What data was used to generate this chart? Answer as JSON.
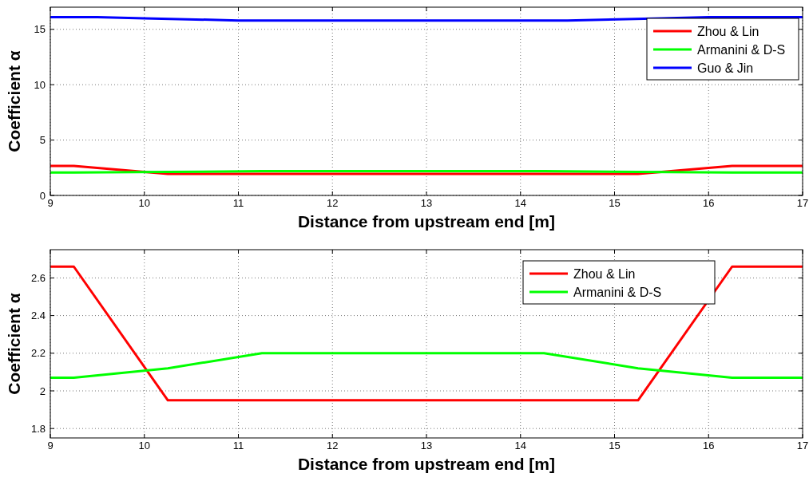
{
  "chart_data": [
    {
      "type": "line",
      "xlabel": "Distance from upstream end [m]",
      "ylabel": "Coefficient α",
      "xlim": [
        9,
        17
      ],
      "xticks": [
        9,
        10,
        11,
        12,
        13,
        14,
        15,
        16,
        17
      ],
      "ylim": [
        0,
        17
      ],
      "yticks": [
        0,
        5,
        10,
        15
      ],
      "grid": true,
      "legend": "top right",
      "line_style": "solid",
      "marker": "none",
      "series": [
        {
          "name": "Zhou & Lin",
          "color": "#ff0000",
          "x": [
            9,
            9.25,
            10.25,
            15.25,
            16.25,
            17
          ],
          "values": [
            2.66,
            2.66,
            1.95,
            1.95,
            2.66,
            2.66
          ]
        },
        {
          "name": "Armanini & D-S",
          "color": "#00ff00",
          "x": [
            9,
            9.25,
            10.25,
            11.25,
            14.25,
            15.25,
            16.25,
            17
          ],
          "values": [
            2.07,
            2.07,
            2.12,
            2.2,
            2.2,
            2.12,
            2.07,
            2.07
          ]
        },
        {
          "name": "Guo & Jin",
          "color": "#0000ff",
          "x": [
            9,
            9.5,
            10,
            11,
            14.5,
            15.5,
            16,
            17
          ],
          "values": [
            16.1,
            16.1,
            16.0,
            15.8,
            15.8,
            16.0,
            16.1,
            16.1
          ]
        }
      ]
    },
    {
      "type": "line",
      "xlabel": "Distance from upstream end [m]",
      "ylabel": "Coefficient α",
      "xlim": [
        9,
        17
      ],
      "xticks": [
        9,
        10,
        11,
        12,
        13,
        14,
        15,
        16,
        17
      ],
      "ylim": [
        1.75,
        2.75
      ],
      "yticks": [
        {
          "value": 1.8,
          "label": "1.8"
        },
        {
          "value": 2,
          "label": "2"
        },
        {
          "value": 2.2,
          "label": "2.2"
        },
        {
          "value": 2.4,
          "label": "2.4"
        },
        {
          "value": 2.6,
          "label": "2.6"
        }
      ],
      "grid": true,
      "legend": "top right",
      "line_style": "solid",
      "marker": "none",
      "series": [
        {
          "name": "Zhou & Lin",
          "color": "#ff0000",
          "x": [
            9,
            9.25,
            10.25,
            15.25,
            16.25,
            17
          ],
          "values": [
            2.66,
            2.66,
            1.95,
            1.95,
            2.66,
            2.66
          ]
        },
        {
          "name": "Armanini & D-S",
          "color": "#00ff00",
          "x": [
            9,
            9.25,
            10.25,
            11.25,
            14.25,
            15.25,
            16.25,
            17
          ],
          "values": [
            2.07,
            2.07,
            2.12,
            2.2,
            2.2,
            2.12,
            2.07,
            2.07
          ]
        }
      ]
    }
  ]
}
